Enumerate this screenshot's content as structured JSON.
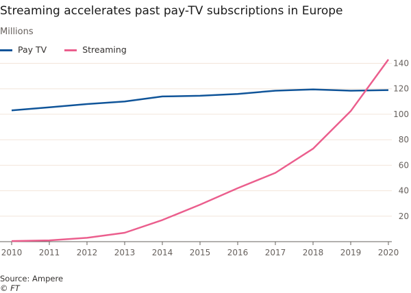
{
  "title": "Streaming accelerates past pay-TV subscriptions in Europe",
  "subtitle": "Millions",
  "source": "Source: Ampere",
  "copyright": "© FT",
  "chart_data": {
    "type": "line",
    "title": "Streaming accelerates past pay-TV subscriptions in Europe",
    "ylabel": "Millions",
    "x": [
      2010,
      2011,
      2012,
      2013,
      2014,
      2015,
      2016,
      2017,
      2018,
      2019,
      2020
    ],
    "series": [
      {
        "name": "Pay TV",
        "color": "#0f5499",
        "values": [
          103,
          105.5,
          108,
          110,
          114,
          114.5,
          116,
          118.5,
          119.5,
          118.5,
          119
        ]
      },
      {
        "name": "Streaming",
        "color": "#eb5e8d",
        "values": [
          0.5,
          1,
          3,
          7,
          17,
          29,
          42,
          54,
          73,
          102.5,
          143
        ]
      }
    ],
    "xlim": [
      2010,
      2020
    ],
    "ylim": [
      0,
      140
    ],
    "yticks": [
      20,
      40,
      60,
      80,
      100,
      120,
      140
    ],
    "xticks": [
      2010,
      2011,
      2012,
      2013,
      2014,
      2015,
      2016,
      2017,
      2018,
      2019,
      2020
    ],
    "y_axis_side": "right",
    "grid": true,
    "legend_position": "top-left"
  }
}
